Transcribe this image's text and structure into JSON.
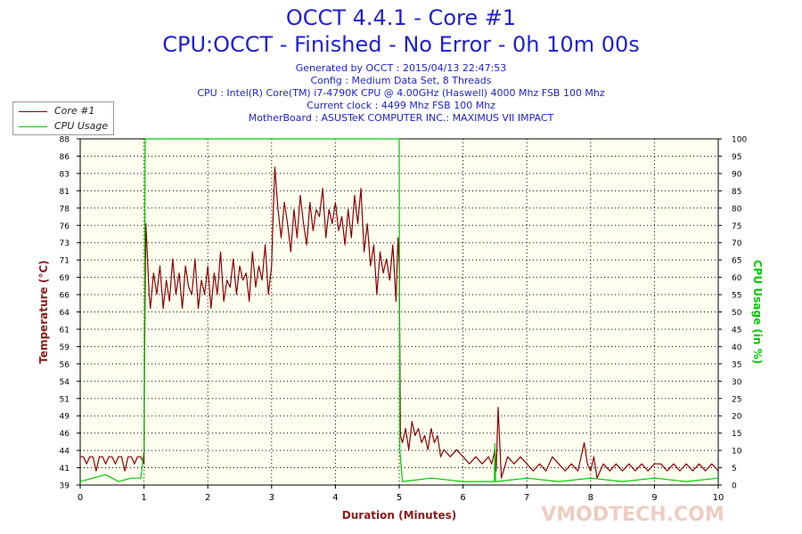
{
  "header": {
    "title": "OCCT 4.4.1 - Core #1",
    "subtitle": "CPU:OCCT - Finished - No Error - 0h 10m 00s",
    "info_lines": [
      "Generated by OCCT : 2015/04/13 22:47:53",
      "Config : Medium Data Set, 8 Threads",
      "CPU : Intel(R) Core(TM) i7-4790K CPU @ 4.00GHz (Haswell) 4000 Mhz FSB 100 Mhz",
      "Current clock : 4499 Mhz FSB 100 Mhz",
      "MotherBoard : ASUSTeK COMPUTER INC.: MAXIMUS VII IMPACT"
    ]
  },
  "legend": {
    "items": [
      {
        "label": "Core #1",
        "color": "#8b0000"
      },
      {
        "label": "CPU Usage",
        "color": "#00c800"
      }
    ]
  },
  "watermark": "VMODTECH.COM",
  "colors": {
    "plot_background": "#fffff0",
    "temperature": "#8b0000",
    "cpu_usage": "#00c800",
    "title": "#1f1fd0",
    "axis_left_label": "#8b1a1a",
    "axis_right_label": "#00c800",
    "x_label": "#8b1a1a"
  },
  "chart_data": {
    "type": "line",
    "xlabel": "Duration (Minutes)",
    "ylabel_left": "Temperature (°C)",
    "ylabel_right": "CPU Usage (in %)",
    "xlim": [
      0,
      10
    ],
    "ylim_left": [
      39,
      88
    ],
    "ylim_right": [
      0,
      100
    ],
    "x_ticks": [
      "0",
      "1",
      "2",
      "3",
      "4",
      "5",
      "6",
      "7",
      "8",
      "9",
      "10"
    ],
    "y_left_ticks": [
      "39",
      "41",
      "44",
      "46",
      "49",
      "51",
      "54",
      "56",
      "59",
      "61",
      "64",
      "66",
      "69",
      "71",
      "73",
      "76",
      "78",
      "81",
      "83",
      "86",
      "88"
    ],
    "y_right_ticks": [
      "0",
      "5",
      "10",
      "15",
      "20",
      "25",
      "30",
      "35",
      "40",
      "45",
      "50",
      "55",
      "60",
      "65",
      "70",
      "75",
      "80",
      "85",
      "90",
      "95",
      "100"
    ],
    "grid": true,
    "legend_position": "top-left",
    "series": [
      {
        "name": "Core #1",
        "axis": "left",
        "x": [
          0.0,
          0.05,
          0.1,
          0.15,
          0.2,
          0.25,
          0.3,
          0.35,
          0.4,
          0.45,
          0.5,
          0.55,
          0.6,
          0.65,
          0.7,
          0.75,
          0.8,
          0.85,
          0.9,
          0.95,
          1.0,
          1.01,
          1.03,
          1.05,
          1.08,
          1.1,
          1.15,
          1.2,
          1.25,
          1.3,
          1.35,
          1.4,
          1.45,
          1.5,
          1.55,
          1.6,
          1.65,
          1.7,
          1.75,
          1.8,
          1.85,
          1.9,
          1.95,
          2.0,
          2.05,
          2.1,
          2.15,
          2.2,
          2.25,
          2.3,
          2.35,
          2.4,
          2.45,
          2.5,
          2.55,
          2.6,
          2.65,
          2.7,
          2.75,
          2.8,
          2.85,
          2.9,
          2.95,
          3.0,
          3.02,
          3.05,
          3.1,
          3.15,
          3.2,
          3.25,
          3.3,
          3.35,
          3.4,
          3.45,
          3.5,
          3.55,
          3.6,
          3.65,
          3.7,
          3.75,
          3.8,
          3.85,
          3.9,
          3.95,
          4.0,
          4.05,
          4.1,
          4.15,
          4.2,
          4.25,
          4.3,
          4.35,
          4.4,
          4.45,
          4.5,
          4.55,
          4.6,
          4.65,
          4.7,
          4.75,
          4.8,
          4.85,
          4.9,
          4.95,
          4.98,
          5.0,
          5.02,
          5.05,
          5.1,
          5.15,
          5.2,
          5.25,
          5.3,
          5.35,
          5.4,
          5.45,
          5.5,
          5.55,
          5.6,
          5.65,
          5.7,
          5.8,
          5.9,
          6.0,
          6.1,
          6.2,
          6.3,
          6.4,
          6.45,
          6.5,
          6.52,
          6.55,
          6.6,
          6.7,
          6.8,
          6.9,
          7.0,
          7.1,
          7.2,
          7.3,
          7.4,
          7.5,
          7.6,
          7.7,
          7.8,
          7.85,
          7.9,
          7.95,
          8.0,
          8.05,
          8.1,
          8.2,
          8.3,
          8.4,
          8.5,
          8.6,
          8.7,
          8.8,
          8.9,
          9.0,
          9.1,
          9.2,
          9.3,
          9.4,
          9.5,
          9.6,
          9.7,
          9.8,
          9.9,
          10.0
        ],
        "y": [
          43,
          43,
          42,
          43,
          43,
          41,
          43,
          43,
          42,
          43,
          43,
          42,
          43,
          43,
          41,
          43,
          43,
          42,
          43,
          43,
          42,
          58,
          76,
          72,
          66,
          64,
          69,
          66,
          70,
          64,
          68,
          65,
          71,
          66,
          69,
          64,
          70,
          67,
          66,
          71,
          64,
          68,
          66,
          70,
          64,
          69,
          66,
          72,
          65,
          68,
          67,
          71,
          66,
          70,
          68,
          69,
          65,
          72,
          67,
          70,
          68,
          73,
          66,
          70,
          76,
          84,
          78,
          74,
          79,
          76,
          72,
          78,
          74,
          80,
          76,
          73,
          79,
          75,
          78,
          77,
          81,
          74,
          78,
          76,
          79,
          75,
          77,
          73,
          78,
          74,
          80,
          76,
          81,
          72,
          76,
          70,
          73,
          66,
          72,
          69,
          71,
          68,
          73,
          65,
          74,
          70,
          46,
          45,
          47,
          44,
          48,
          46,
          47,
          45,
          46,
          44,
          47,
          45,
          46,
          43,
          44,
          43,
          44,
          43,
          42,
          43,
          42,
          43,
          42,
          44,
          41,
          50,
          40,
          43,
          42,
          43,
          42,
          41,
          42,
          41,
          43,
          42,
          41,
          42,
          41,
          43,
          45,
          42,
          41,
          43,
          40,
          42,
          41,
          42,
          41,
          42,
          41,
          42,
          41,
          42,
          42,
          41,
          42,
          41,
          42,
          41,
          42,
          41,
          42,
          41
        ]
      },
      {
        "name": "CPU Usage",
        "axis": "right",
        "x": [
          0.0,
          0.2,
          0.4,
          0.6,
          0.8,
          0.95,
          1.0,
          1.02,
          1.05,
          5.0,
          5.01,
          5.05,
          5.5,
          6.0,
          6.49,
          6.5,
          6.51,
          6.52,
          7.0,
          7.5,
          8.0,
          8.5,
          9.0,
          9.5,
          10.0
        ],
        "y": [
          1,
          2,
          3,
          1,
          2,
          2,
          10,
          100,
          100,
          100,
          10,
          1,
          2,
          1,
          1,
          12,
          1,
          1,
          2,
          1,
          2,
          1,
          2,
          1,
          2
        ]
      }
    ]
  }
}
